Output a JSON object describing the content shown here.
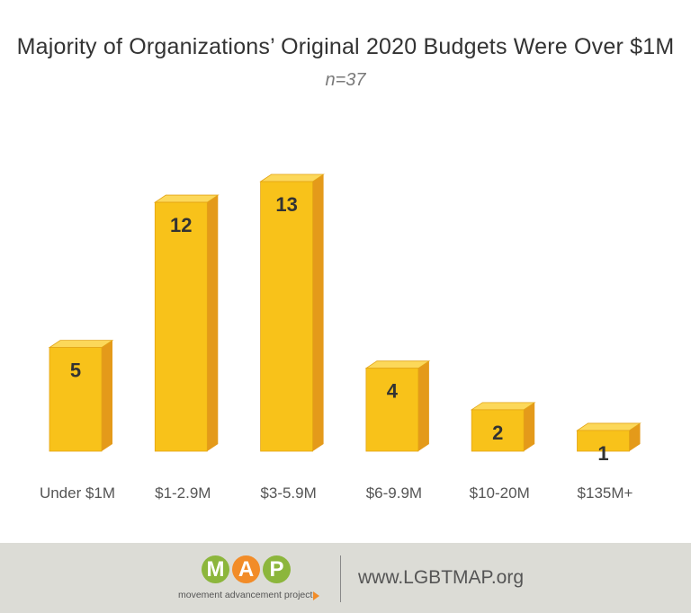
{
  "chart_data": {
    "type": "bar",
    "title": "Majority of Organizations’ Original 2020 Budgets Were Over $1M",
    "subtitle": "n=37",
    "categories": [
      "Under $1M",
      "$1-2.9M",
      "$3-5.9M",
      "$6-9.9M",
      "$10-20M",
      "$135M+"
    ],
    "values": [
      5,
      12,
      13,
      4,
      2,
      1
    ],
    "xlabel": "",
    "ylabel": "",
    "ylim": [
      0,
      13
    ],
    "grid": false,
    "legend": "none",
    "colors": {
      "bar_front": "#f8c21a",
      "bar_side": "#e49a1a",
      "bar_top": "#fcd85a",
      "bar_edge": "#e3a414"
    }
  },
  "footer": {
    "logo_letters": [
      "M",
      "A",
      "P"
    ],
    "logo_colors": [
      "#8cb63c",
      "#f28c28",
      "#8cb63c"
    ],
    "tagline": "movement advancement project",
    "url": "www.LGBTMAP.org",
    "background": "#dcdcd6"
  }
}
